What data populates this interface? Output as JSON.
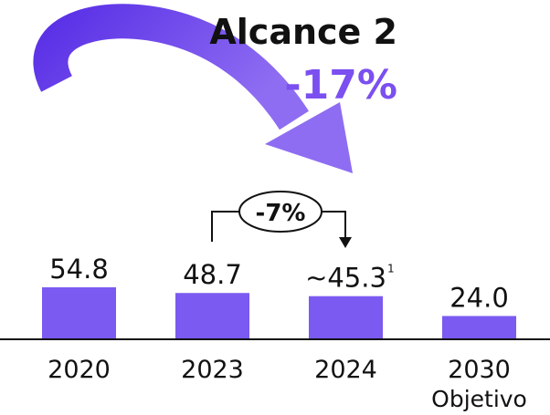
{
  "chart_data": {
    "type": "bar",
    "title": "Alcance 2",
    "annotations": [
      "-17%",
      "-7%"
    ],
    "categories": [
      "2020",
      "2023",
      "2024",
      "2030"
    ],
    "category_notes": [
      null,
      null,
      null,
      "Objetivo"
    ],
    "values": [
      54.8,
      48.7,
      45.3,
      24.0
    ],
    "value_labels": [
      "54.8",
      "48.7",
      "~45.3",
      "24.0"
    ],
    "value_label_footnotes": [
      null,
      null,
      "1",
      null
    ],
    "color": "#7a5af0"
  }
}
